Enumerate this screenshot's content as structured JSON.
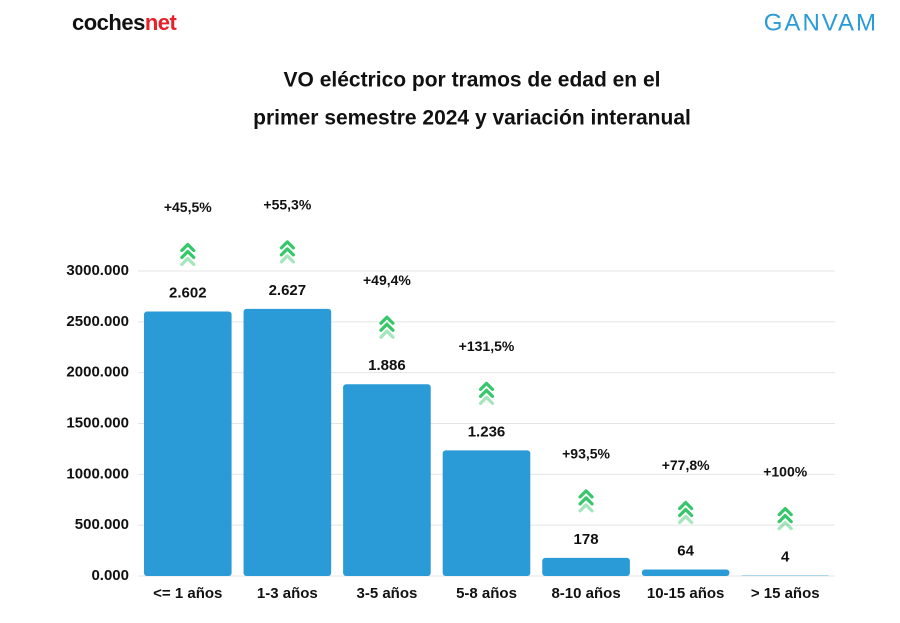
{
  "header": {
    "brand_left": "coches",
    "brand_left_accent": "net",
    "brand_right": "GANVAM"
  },
  "chart_data": {
    "type": "bar",
    "title": [
      "VO eléctrico por tramos de edad en el",
      "primer semestre 2024 y variación interanual"
    ],
    "categories": [
      "<= 1 años",
      "1-3 años",
      "3-5 años",
      "5-8 años",
      "8-10 años",
      "10-15 años",
      "> 15 años"
    ],
    "values": [
      2602,
      2627,
      1886,
      1236,
      178,
      64,
      4
    ],
    "value_labels": [
      "2.602",
      "2.627",
      "1.886",
      "1.236",
      "178",
      "64",
      "4"
    ],
    "variations": [
      45.5,
      55.3,
      49.4,
      131.5,
      93.5,
      77.8,
      100
    ],
    "variation_labels": [
      "+45,5%",
      "+55,3%",
      "+49,4%",
      "+131,5%",
      "+93,5%",
      "+77,8%",
      "+100%"
    ],
    "color": "#2a9bd6",
    "arrow_color": "#35c76a",
    "ylim": [
      0,
      3000
    ],
    "yticks": [
      {
        "value": 0,
        "label": "0.000"
      },
      {
        "value": 500,
        "label": "500.000"
      },
      {
        "value": 1000,
        "label": "1000.000"
      },
      {
        "value": 1500,
        "label": "1500.000"
      },
      {
        "value": 2000,
        "label": "2000.000"
      },
      {
        "value": 2500,
        "label": "2500.000"
      },
      {
        "value": 3000,
        "label": "3000.000"
      }
    ],
    "grid": true
  }
}
